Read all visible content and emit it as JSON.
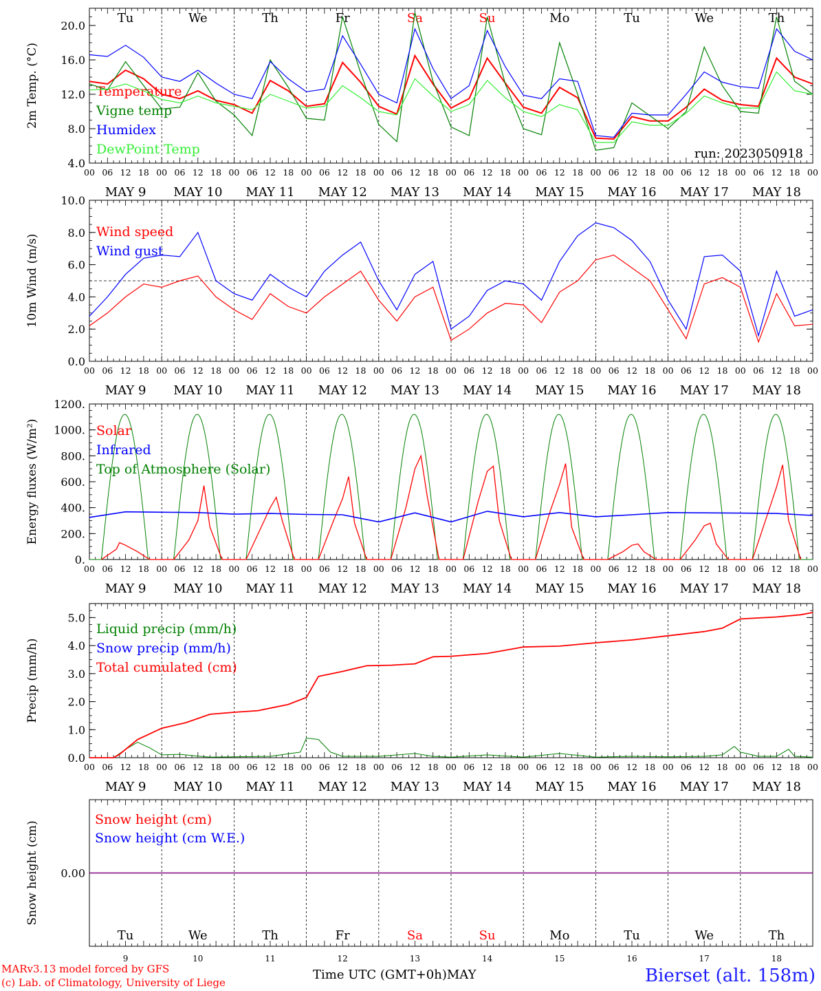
{
  "colors": {
    "red": "#ff0000",
    "darkgreen": "#008000",
    "blue": "#0000ff",
    "lightgreen": "#33ee33",
    "purple": "#800080"
  },
  "day_names": [
    "Tu",
    "We",
    "Th",
    "Fr",
    "Sa",
    "Su",
    "Mo",
    "Tu",
    "We",
    "Th"
  ],
  "day_name_colors": [
    "#000",
    "#000",
    "#000",
    "#000",
    "#ff0000",
    "#ff0000",
    "#000",
    "#000",
    "#000",
    "#000"
  ],
  "date_labels": [
    "MAY  9",
    "MAY 10",
    "MAY 11",
    "MAY 12",
    "MAY 13",
    "MAY 14",
    "MAY 15",
    "MAY 16",
    "MAY 17",
    "MAY 18"
  ],
  "hour_labels": [
    "00",
    "06",
    "12",
    "18"
  ],
  "day_numbers": [
    "9",
    "10",
    "11",
    "12",
    "13",
    "14",
    "15",
    "16",
    "17",
    "18"
  ],
  "x_axis_title": "Time UTC (GMT+0h)",
  "x_axis_month": "MAY",
  "station": "Bierset (alt. 158m)",
  "credits": [
    "MARv3.13 model forced by GFS",
    "(c) Lab. of Climatology, University of Liege"
  ],
  "chart_data": [
    {
      "type": "line",
      "ylabel": "2m Temp. (°C)",
      "ylim": [
        4.0,
        22.0
      ],
      "yticks": [
        "4.0",
        "8.0",
        "12.0",
        "16.0",
        "20.0"
      ],
      "yticks_values": [
        4,
        8,
        12,
        16,
        20
      ],
      "annotation": "run: 2023050918",
      "x_unit": "hours since 2023-05-09 00 UTC",
      "series": [
        {
          "name": "Temperature",
          "color": "#ff0000",
          "x": [
            0,
            6,
            12,
            18,
            24,
            30,
            36,
            42,
            48,
            54,
            60,
            66,
            72,
            78,
            84,
            90,
            96,
            102,
            108,
            114,
            120,
            126,
            132,
            138,
            144,
            150,
            156,
            162,
            168,
            174,
            180,
            186,
            192,
            198,
            204,
            210,
            216,
            222,
            228,
            234,
            240
          ],
          "y": [
            13.5,
            13.2,
            14.8,
            13.8,
            12.0,
            11.5,
            12.4,
            11.3,
            10.8,
            9.8,
            13.6,
            12.4,
            10.6,
            10.9,
            15.7,
            13.4,
            10.6,
            9.7,
            16.5,
            13.2,
            10.4,
            11.5,
            16.2,
            13.3,
            10.5,
            9.8,
            12.8,
            11.6,
            6.9,
            6.8,
            9.4,
            8.9,
            8.9,
            10.5,
            12.6,
            11.3,
            10.8,
            10.6,
            16.2,
            14.0,
            13.2
          ]
        },
        {
          "name": "Vigne temp",
          "color": "#008000",
          "x": [
            0,
            6,
            12,
            18,
            24,
            30,
            36,
            42,
            48,
            54,
            60,
            66,
            72,
            78,
            84,
            90,
            96,
            102,
            108,
            114,
            120,
            126,
            132,
            138,
            144,
            150,
            156,
            162,
            168,
            174,
            180,
            186,
            192,
            198,
            204,
            210,
            216,
            222,
            228,
            234,
            240
          ],
          "y": [
            13.2,
            12.5,
            15.8,
            13.0,
            10.3,
            10.5,
            14.5,
            11.2,
            9.6,
            7.2,
            16.0,
            12.8,
            9.2,
            9.0,
            21.0,
            14.5,
            8.5,
            6.5,
            21.5,
            13.5,
            8.2,
            7.2,
            21.0,
            13.2,
            8.0,
            7.3,
            18.0,
            12.0,
            5.5,
            5.8,
            11.0,
            9.5,
            8.0,
            10.0,
            17.5,
            13.0,
            10.0,
            9.8,
            21.0,
            13.5,
            12.0
          ]
        },
        {
          "name": "Humidex",
          "color": "#0000ff",
          "x": [
            0,
            6,
            12,
            18,
            24,
            30,
            36,
            42,
            48,
            54,
            60,
            66,
            72,
            78,
            84,
            90,
            96,
            102,
            108,
            114,
            120,
            126,
            132,
            138,
            144,
            150,
            156,
            162,
            168,
            174,
            180,
            186,
            192,
            198,
            204,
            210,
            216,
            222,
            228,
            234,
            240
          ],
          "y": [
            16.6,
            16.4,
            17.7,
            16.3,
            14.0,
            13.5,
            14.8,
            13.3,
            12.0,
            11.5,
            15.8,
            13.8,
            12.3,
            12.6,
            18.8,
            15.5,
            12.0,
            11.0,
            19.6,
            15.0,
            11.5,
            13.0,
            19.4,
            15.2,
            11.9,
            11.5,
            13.8,
            13.5,
            7.2,
            7.0,
            9.8,
            9.6,
            9.6,
            12.0,
            14.6,
            13.4,
            12.9,
            12.7,
            19.6,
            17.0,
            16.0
          ]
        },
        {
          "name": "DewPoint Temp",
          "color": "#33ee33",
          "x": [
            0,
            6,
            12,
            18,
            24,
            30,
            36,
            42,
            48,
            54,
            60,
            66,
            72,
            78,
            84,
            90,
            96,
            102,
            108,
            114,
            120,
            126,
            132,
            138,
            144,
            150,
            156,
            162,
            168,
            174,
            180,
            186,
            192,
            198,
            204,
            210,
            216,
            222,
            228,
            234,
            240
          ],
          "y": [
            12.5,
            12.6,
            13.2,
            12.4,
            11.4,
            11.0,
            11.8,
            11.0,
            10.6,
            10.2,
            12.0,
            11.2,
            10.4,
            10.6,
            13.0,
            11.6,
            10.0,
            9.6,
            13.8,
            11.8,
            10.0,
            10.8,
            13.6,
            11.6,
            10.0,
            9.4,
            10.8,
            10.2,
            6.4,
            6.4,
            8.8,
            8.4,
            8.4,
            9.8,
            11.8,
            11.0,
            10.4,
            10.4,
            14.6,
            12.4,
            12.0
          ]
        }
      ]
    },
    {
      "type": "line",
      "ylabel": "10m Wind (m/s)",
      "ylim": [
        0.0,
        10.0
      ],
      "yticks": [
        "0.0",
        "2.0",
        "4.0",
        "6.0",
        "8.0",
        "10.0"
      ],
      "yticks_values": [
        0,
        2,
        4,
        6,
        8,
        10
      ],
      "reference_line": 5.0,
      "x_unit": "hours since 2023-05-09 00 UTC",
      "series": [
        {
          "name": "Wind speed",
          "color": "#ff0000",
          "x": [
            0,
            6,
            12,
            18,
            24,
            30,
            36,
            42,
            48,
            54,
            60,
            66,
            72,
            78,
            84,
            90,
            96,
            102,
            108,
            114,
            120,
            126,
            132,
            138,
            144,
            150,
            156,
            162,
            168,
            174,
            180,
            186,
            192,
            198,
            204,
            210,
            216,
            222,
            228,
            234,
            240
          ],
          "y": [
            2.2,
            3.0,
            4.0,
            4.8,
            4.6,
            5.0,
            5.3,
            4.0,
            3.2,
            2.6,
            4.2,
            3.4,
            3.0,
            4.0,
            4.8,
            5.6,
            3.8,
            2.5,
            4.0,
            4.6,
            1.3,
            2.0,
            3.0,
            3.6,
            3.5,
            2.4,
            4.3,
            5.0,
            6.3,
            6.6,
            5.8,
            5.0,
            3.2,
            1.4,
            4.8,
            5.2,
            4.6,
            1.2,
            4.2,
            2.2,
            2.3
          ]
        },
        {
          "name": "Wind gust",
          "color": "#0000ff",
          "x": [
            0,
            6,
            12,
            18,
            24,
            30,
            36,
            42,
            48,
            54,
            60,
            66,
            72,
            78,
            84,
            90,
            96,
            102,
            108,
            114,
            120,
            126,
            132,
            138,
            144,
            150,
            156,
            162,
            168,
            174,
            180,
            186,
            192,
            198,
            204,
            210,
            216,
            222,
            228,
            234,
            240
          ],
          "y": [
            2.8,
            4.0,
            5.4,
            6.4,
            6.6,
            6.5,
            8.0,
            5.0,
            4.2,
            3.8,
            5.4,
            4.6,
            4.0,
            5.6,
            6.6,
            7.4,
            5.0,
            3.2,
            5.4,
            6.2,
            2.0,
            2.8,
            4.4,
            5.0,
            4.8,
            3.8,
            6.2,
            7.8,
            8.6,
            8.3,
            7.5,
            6.2,
            3.8,
            2.0,
            6.5,
            6.6,
            5.6,
            1.6,
            5.6,
            2.8,
            3.2
          ]
        }
      ]
    },
    {
      "type": "line",
      "ylabel": "Energy fluxes (W/m²)",
      "ylim": [
        0,
        1200
      ],
      "yticks": [
        "0.",
        "200.",
        "400.",
        "600.",
        "800.",
        "1000.",
        "1200."
      ],
      "yticks_values": [
        0,
        200,
        400,
        600,
        800,
        1000,
        1200
      ],
      "x_unit": "hours since 2023-05-09 00 UTC",
      "series": [
        {
          "name": "Solar",
          "color": "#ff0000",
          "daily_peaks_W_m2": [
            130,
            570,
            480,
            640,
            800,
            720,
            740,
            120,
            280,
            730
          ],
          "x": [
            4,
            9,
            10,
            12,
            16,
            20,
            28,
            33,
            36,
            38,
            40,
            44,
            52,
            57,
            60,
            62,
            64,
            68,
            76,
            81,
            84,
            86,
            88,
            92,
            100,
            105,
            108,
            110,
            112,
            116,
            124,
            129,
            132,
            134,
            136,
            140,
            148,
            153,
            156,
            158,
            160,
            164,
            172,
            177,
            180,
            182,
            184,
            188,
            196,
            201,
            204,
            206,
            208,
            212,
            220,
            225,
            228,
            230,
            232,
            236
          ],
          "y": [
            0,
            80,
            130,
            110,
            60,
            0,
            0,
            150,
            300,
            570,
            250,
            0,
            0,
            250,
            400,
            480,
            300,
            0,
            0,
            300,
            470,
            640,
            280,
            0,
            0,
            400,
            700,
            800,
            500,
            0,
            0,
            450,
            680,
            720,
            300,
            0,
            0,
            380,
            580,
            740,
            250,
            0,
            0,
            60,
            110,
            120,
            60,
            0,
            0,
            150,
            260,
            280,
            120,
            0,
            0,
            350,
            560,
            730,
            300,
            0
          ]
        },
        {
          "name": "Infrared",
          "color": "#0000ff",
          "x": [
            0,
            12,
            24,
            36,
            48,
            60,
            72,
            84,
            96,
            108,
            120,
            132,
            144,
            156,
            168,
            180,
            192,
            204,
            216,
            228,
            240
          ],
          "y": [
            325,
            368,
            365,
            362,
            350,
            355,
            348,
            345,
            290,
            360,
            290,
            372,
            330,
            362,
            330,
            345,
            362,
            360,
            358,
            355,
            340
          ]
        },
        {
          "name": "Top of Atmosphere (Solar)",
          "color": "#008000",
          "daily_peak_W_m2": 1120,
          "daylight_hours_utc": [
            4,
            19.5
          ]
        }
      ]
    },
    {
      "type": "line",
      "ylabel": "Precip (mm/h)",
      "ylim": [
        0.0,
        5.5
      ],
      "yticks": [
        "0.0",
        "1.0",
        "2.0",
        "3.0",
        "4.0",
        "5.0"
      ],
      "yticks_values": [
        0,
        1,
        2,
        3,
        4,
        5
      ],
      "x_unit": "hours since 2023-05-09 00 UTC",
      "series": [
        {
          "name": "Liquid precip (mm/h)",
          "color": "#008000",
          "x": [
            0,
            8,
            12,
            16,
            20,
            24,
            30,
            40,
            60,
            70,
            72,
            76,
            80,
            84,
            96,
            108,
            114,
            120,
            132,
            144,
            156,
            168,
            180,
            192,
            204,
            210,
            214,
            216,
            222,
            228,
            232,
            234,
            240
          ],
          "y": [
            0,
            0,
            0.3,
            0.55,
            0.35,
            0.1,
            0.12,
            0.02,
            0.05,
            0.2,
            0.7,
            0.65,
            0.2,
            0.05,
            0.05,
            0.15,
            0.05,
            0.02,
            0.1,
            0.02,
            0.15,
            0.02,
            0.05,
            0.03,
            0.05,
            0.1,
            0.4,
            0.2,
            0.05,
            0.05,
            0.3,
            0.05,
            0.02
          ]
        },
        {
          "name": "Snow precip (mm/h)",
          "color": "#0000ff",
          "x": [
            0,
            240
          ],
          "y": [
            0,
            0
          ]
        },
        {
          "name": "Total cumulated (cm)",
          "color": "#ff0000",
          "x": [
            0,
            8,
            10,
            16,
            24,
            32,
            40,
            48,
            56,
            66,
            72,
            76,
            84,
            92,
            100,
            108,
            114,
            120,
            132,
            144,
            156,
            168,
            180,
            192,
            204,
            210,
            216,
            228,
            236,
            240
          ],
          "y": [
            0,
            0,
            0.12,
            0.65,
            1.05,
            1.25,
            1.55,
            1.62,
            1.68,
            1.9,
            2.15,
            2.9,
            3.08,
            3.28,
            3.3,
            3.35,
            3.6,
            3.62,
            3.72,
            3.95,
            3.98,
            4.1,
            4.2,
            4.35,
            4.5,
            4.62,
            4.95,
            5.02,
            5.1,
            5.18
          ]
        }
      ]
    },
    {
      "type": "line",
      "ylabel": "Snow height (cm)",
      "yticks": [
        "0.00"
      ],
      "yticks_values": [
        0
      ],
      "x_unit": "hours since 2023-05-09 00 UTC",
      "series": [
        {
          "name": "Snow height (cm)",
          "color": "#ff0000",
          "x": [
            0,
            240
          ],
          "y": [
            0,
            0
          ]
        },
        {
          "name": "Snow height (cm W.E.)",
          "color": "#0000ff",
          "x": [
            0,
            240
          ],
          "y": [
            0,
            0
          ]
        }
      ]
    }
  ]
}
